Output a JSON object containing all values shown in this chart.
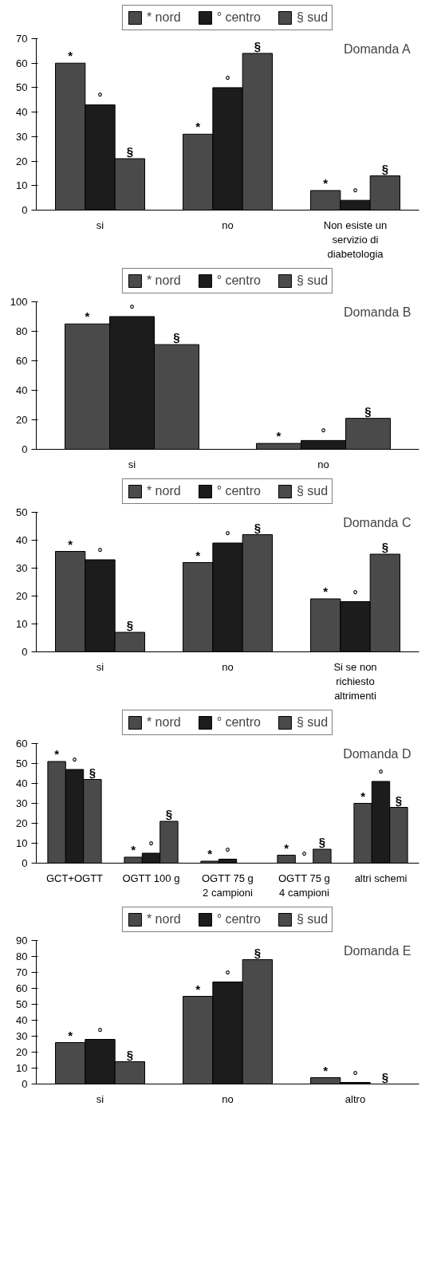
{
  "chart_data": [
    {
      "type": "bar",
      "categories": [
        "si",
        "no",
        "Non esiste un\nservizio di\ndiabetologia"
      ],
      "ylim": [
        0,
        70
      ],
      "yticks": [
        0,
        10,
        20,
        30,
        40,
        50,
        60,
        70
      ],
      "grid": false,
      "legend": "top",
      "series": [
        {
          "name": "* nord",
          "color": "#4a4a4a",
          "values": [
            60,
            31,
            8
          ],
          "value_labels": [
            "*",
            "*",
            "*"
          ]
        },
        {
          "name": "° centro",
          "color": "#1c1c1c",
          "values": [
            43,
            50,
            4
          ],
          "value_labels": [
            "°",
            "°",
            "°"
          ]
        },
        {
          "name": "§ sud",
          "color": "#4a4a4a",
          "values": [
            21,
            64,
            14
          ],
          "value_labels": [
            "§",
            "§",
            "§"
          ]
        }
      ],
      "annotations": [
        "Domanda A"
      ]
    },
    {
      "type": "bar",
      "categories": [
        "si",
        "no"
      ],
      "ylim": [
        0,
        100
      ],
      "yticks": [
        0,
        20,
        40,
        60,
        80,
        100
      ],
      "grid": false,
      "legend": "top",
      "series": [
        {
          "name": "* nord",
          "color": "#4a4a4a",
          "values": [
            85,
            4
          ],
          "value_labels": [
            "*",
            "*"
          ]
        },
        {
          "name": "° centro",
          "color": "#1c1c1c",
          "values": [
            90,
            6
          ],
          "value_labels": [
            "°",
            "°"
          ]
        },
        {
          "name": "§ sud",
          "color": "#4a4a4a",
          "values": [
            71,
            21
          ],
          "value_labels": [
            "§",
            "§"
          ]
        }
      ],
      "annotations": [
        "Domanda B"
      ]
    },
    {
      "type": "bar",
      "categories": [
        "si",
        "no",
        "Si se non\nrichiesto\naltrimenti"
      ],
      "ylim": [
        0,
        50
      ],
      "yticks": [
        0,
        10,
        20,
        30,
        40,
        50
      ],
      "grid": false,
      "legend": "top",
      "series": [
        {
          "name": "* nord",
          "color": "#4a4a4a",
          "values": [
            36,
            32,
            19
          ],
          "value_labels": [
            "*",
            "*",
            "*"
          ]
        },
        {
          "name": "° centro",
          "color": "#1c1c1c",
          "values": [
            33,
            39,
            18
          ],
          "value_labels": [
            "°",
            "°",
            "°"
          ]
        },
        {
          "name": "§ sud",
          "color": "#4a4a4a",
          "values": [
            7,
            42,
            35
          ],
          "value_labels": [
            "§",
            "§",
            "§"
          ]
        }
      ],
      "annotations": [
        "Domanda C"
      ]
    },
    {
      "type": "bar",
      "categories": [
        "GCT+OGTT",
        "OGTT 100 g",
        "OGTT 75 g\n2 campioni",
        "OGTT 75 g\n4 campioni",
        "altri schemi"
      ],
      "ylim": [
        0,
        60
      ],
      "yticks": [
        0,
        10,
        20,
        30,
        40,
        50,
        60
      ],
      "grid": false,
      "legend": "top",
      "series": [
        {
          "name": "* nord",
          "color": "#4a4a4a",
          "values": [
            51,
            3,
            1,
            4,
            30
          ],
          "value_labels": [
            "*",
            "*",
            "*",
            "*",
            "*"
          ]
        },
        {
          "name": "° centro",
          "color": "#1c1c1c",
          "values": [
            47,
            5,
            2,
            0,
            41
          ],
          "value_labels": [
            "°",
            "°",
            "°",
            "°",
            "°"
          ]
        },
        {
          "name": "§ sud",
          "color": "#4a4a4a",
          "values": [
            42,
            21,
            null,
            7,
            28
          ],
          "value_labels": [
            "§",
            "§",
            null,
            "§",
            "§"
          ]
        }
      ],
      "annotations": [
        "Domanda D"
      ]
    },
    {
      "type": "bar",
      "categories": [
        "si",
        "no",
        "altro"
      ],
      "ylim": [
        0,
        90
      ],
      "yticks": [
        0,
        10,
        20,
        30,
        40,
        50,
        60,
        70,
        80,
        90
      ],
      "grid": false,
      "legend": "top",
      "series": [
        {
          "name": "* nord",
          "color": "#4a4a4a",
          "values": [
            26,
            55,
            4
          ],
          "value_labels": [
            "*",
            "*",
            "*"
          ]
        },
        {
          "name": "° centro",
          "color": "#1c1c1c",
          "values": [
            28,
            64,
            1
          ],
          "value_labels": [
            "°",
            "°",
            "°"
          ]
        },
        {
          "name": "§ sud",
          "color": "#4a4a4a",
          "values": [
            14,
            78,
            0
          ],
          "value_labels": [
            "§",
            "§",
            "§"
          ]
        }
      ],
      "annotations": [
        "Domanda E"
      ]
    }
  ]
}
